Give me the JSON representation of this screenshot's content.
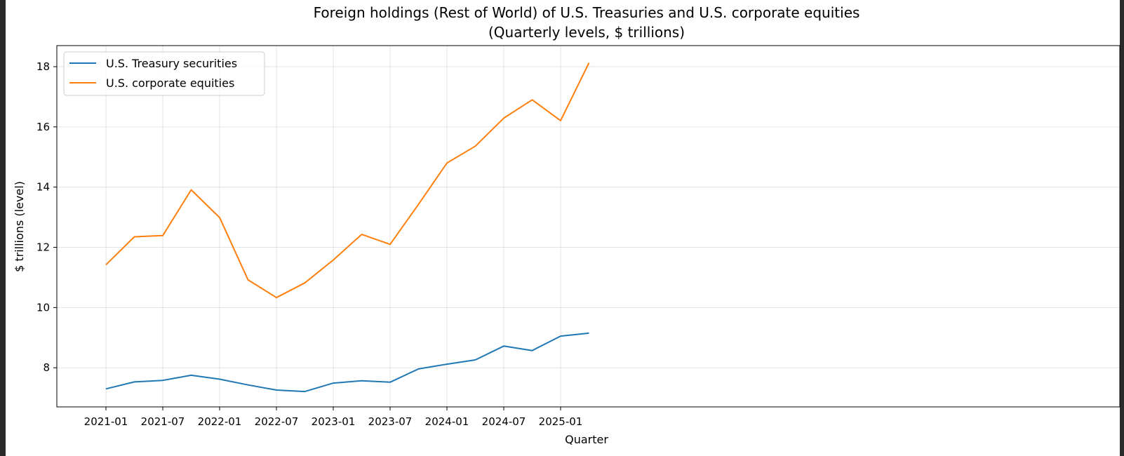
{
  "chart_data": {
    "type": "line",
    "title": "Foreign holdings (Rest of World) of U.S. Treasuries and U.S. corporate equities",
    "subtitle": "(Quarterly levels, $ trillions)",
    "xlabel": "Quarter",
    "ylabel": "$ trillions (level)",
    "legend_position": "upper-left",
    "grid": true,
    "x": [
      "2021-01",
      "2021-04",
      "2021-07",
      "2021-10",
      "2022-01",
      "2022-04",
      "2022-07",
      "2022-10",
      "2023-01",
      "2023-04",
      "2023-07",
      "2023-10",
      "2024-01",
      "2024-04",
      "2024-07",
      "2024-10",
      "2025-01",
      "2025-04"
    ],
    "x_ticks": [
      "2021-01",
      "2021-07",
      "2022-01",
      "2022-07",
      "2023-01",
      "2023-07",
      "2024-01",
      "2024-07",
      "2025-01"
    ],
    "y_ticks": [
      8,
      10,
      12,
      14,
      16,
      18
    ],
    "ylim": [
      6.7,
      18.7
    ],
    "series": [
      {
        "name": "U.S. Treasury securities",
        "color": "#1f77b4",
        "values": [
          7.3,
          7.53,
          7.58,
          7.75,
          7.62,
          7.43,
          7.26,
          7.21,
          7.49,
          7.57,
          7.52,
          7.96,
          8.12,
          8.26,
          8.72,
          8.57,
          9.05,
          9.15
        ]
      },
      {
        "name": "U.S. corporate equities",
        "color": "#ff7f0e",
        "values": [
          11.42,
          12.35,
          12.39,
          13.91,
          12.99,
          10.92,
          10.33,
          10.82,
          11.58,
          12.43,
          12.1,
          13.43,
          14.8,
          15.36,
          16.29,
          16.9,
          16.21,
          18.13
        ]
      }
    ]
  }
}
